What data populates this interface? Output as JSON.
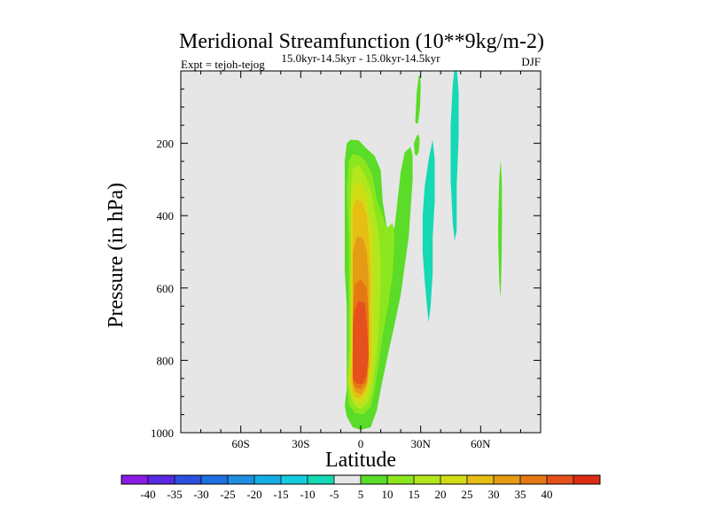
{
  "chart_data": {
    "type": "contour",
    "title": "Meridional Streamfunction (10**9kg/m-2)",
    "left_label": "Expt = tejoh-tejog",
    "center_label": "15.0kyr-14.5kyr - 15.0kyr-14.5kyr",
    "right_label": "DJF",
    "xlabel": "Latitude",
    "ylabel": "Pressure (in hPa)",
    "xlim": [
      -90,
      90
    ],
    "ylim": [
      1000,
      0
    ],
    "x_ticks": [
      {
        "value": -60,
        "label": "60S"
      },
      {
        "value": -30,
        "label": "30S"
      },
      {
        "value": 0,
        "label": "0"
      },
      {
        "value": 30,
        "label": "30N"
      },
      {
        "value": 60,
        "label": "60N"
      }
    ],
    "y_ticks": [
      {
        "value": 200,
        "label": "200"
      },
      {
        "value": 400,
        "label": "400"
      },
      {
        "value": 600,
        "label": "600"
      },
      {
        "value": 800,
        "label": "800"
      },
      {
        "value": 1000,
        "label": "1000"
      }
    ],
    "background_color": "#e6e6e6",
    "colorbar": {
      "colors": [
        "#8a1ae6",
        "#5a28e0",
        "#2c4fe0",
        "#1e6fe0",
        "#1e8fe0",
        "#14aee6",
        "#14cde0",
        "#14d9b4",
        "#e6e6e6",
        "#5adc28",
        "#8ce61e",
        "#b4e61e",
        "#d2dc14",
        "#e6be14",
        "#e69b14",
        "#e67814",
        "#e6501e",
        "#dc2d14"
      ],
      "labels": [
        "-40",
        "-35",
        "-30",
        "-25",
        "-20",
        "-15",
        "-10",
        "-5",
        "5",
        "10",
        "15",
        "20",
        "25",
        "30",
        "35",
        "40"
      ]
    },
    "contours": [
      {
        "level": 5,
        "color": "#5adc28",
        "points": [
          [
            -8,
            925
          ],
          [
            -7,
            880
          ],
          [
            -7,
            820
          ],
          [
            -7,
            750
          ],
          [
            -7,
            650
          ],
          [
            -8,
            550
          ],
          [
            -8,
            450
          ],
          [
            -8,
            350
          ],
          [
            -8,
            250
          ],
          [
            -7,
            200
          ],
          [
            -5,
            190
          ],
          [
            -1,
            192
          ],
          [
            3,
            215
          ],
          [
            7,
            235
          ],
          [
            10,
            275
          ],
          [
            11,
            360
          ],
          [
            13,
            430
          ],
          [
            15,
            455
          ],
          [
            17,
            430
          ],
          [
            18,
            380
          ],
          [
            20,
            280
          ],
          [
            22,
            225
          ],
          [
            25,
            210
          ],
          [
            26,
            235
          ],
          [
            26,
            300
          ],
          [
            25,
            380
          ],
          [
            24,
            460
          ],
          [
            22,
            540
          ],
          [
            20,
            620
          ],
          [
            17,
            700
          ],
          [
            13,
            800
          ],
          [
            10,
            880
          ],
          [
            8,
            940
          ],
          [
            5,
            985
          ],
          [
            0,
            992
          ],
          [
            -4,
            985
          ],
          [
            -7,
            955
          ]
        ]
      },
      {
        "level": 5,
        "color": "#5adc28",
        "points": [
          [
            26.6,
            200
          ],
          [
            27.3,
            190
          ],
          [
            28,
            180
          ],
          [
            28.7,
            175
          ],
          [
            29.4,
            185
          ],
          [
            29.4,
            200
          ],
          [
            29,
            225
          ],
          [
            28,
            235
          ],
          [
            27,
            230
          ]
        ]
      },
      {
        "level": 5,
        "color": "#5adc28",
        "points": [
          [
            27.3,
            140
          ],
          [
            28,
            60
          ],
          [
            29,
            15
          ],
          [
            29.7,
            10
          ],
          [
            30,
            40
          ],
          [
            29.7,
            100
          ],
          [
            28.7,
            145
          ],
          [
            27.7,
            145
          ]
        ]
      },
      {
        "level": 5,
        "color": "#5adc28",
        "points": [
          [
            68.8,
            400
          ],
          [
            69.3,
            300
          ],
          [
            70,
            245
          ],
          [
            70.6,
            300
          ],
          [
            70.7,
            400
          ],
          [
            70.5,
            520
          ],
          [
            70,
            628
          ],
          [
            69.3,
            580
          ],
          [
            68.8,
            480
          ]
        ]
      },
      {
        "level": -5,
        "color": "#14d9b4",
        "points": [
          [
            31,
            500
          ],
          [
            31,
            400
          ],
          [
            32,
            320
          ],
          [
            34,
            245
          ],
          [
            36,
            190
          ],
          [
            37,
            245
          ],
          [
            37,
            360
          ],
          [
            36,
            460
          ],
          [
            36,
            560
          ],
          [
            35,
            650
          ],
          [
            34,
            695
          ],
          [
            33,
            640
          ],
          [
            32,
            580
          ]
        ]
      },
      {
        "level": -5,
        "color": "#14d9b4",
        "points": [
          [
            45,
            300
          ],
          [
            45,
            150
          ],
          [
            46,
            40
          ],
          [
            47,
            -10
          ],
          [
            48,
            -10
          ],
          [
            49,
            60
          ],
          [
            49,
            180
          ],
          [
            48,
            320
          ],
          [
            48,
            440
          ],
          [
            47,
            470
          ],
          [
            46,
            420
          ]
        ]
      },
      {
        "level": 10,
        "color": "#8ce61e",
        "points": [
          [
            -7,
            860
          ],
          [
            -6,
            750
          ],
          [
            -6,
            600
          ],
          [
            -6,
            450
          ],
          [
            -7,
            330
          ],
          [
            -6,
            250
          ],
          [
            -4,
            230
          ],
          [
            0,
            235
          ],
          [
            3,
            255
          ],
          [
            6,
            290
          ],
          [
            8,
            355
          ],
          [
            11,
            400
          ],
          [
            13,
            435
          ],
          [
            16,
            420
          ],
          [
            17,
            460
          ],
          [
            16,
            560
          ],
          [
            14,
            640
          ],
          [
            11,
            730
          ],
          [
            9,
            810
          ],
          [
            7,
            880
          ],
          [
            5,
            930
          ],
          [
            1,
            950
          ],
          [
            -3,
            945
          ],
          [
            -6,
            920
          ]
        ]
      },
      {
        "level": 15,
        "color": "#b4e61e",
        "points": [
          [
            -6,
            860
          ],
          [
            -5,
            750
          ],
          [
            -5,
            600
          ],
          [
            -5,
            450
          ],
          [
            -5,
            330
          ],
          [
            -4,
            270
          ],
          [
            -1,
            260
          ],
          [
            2,
            285
          ],
          [
            5,
            330
          ],
          [
            7,
            390
          ],
          [
            9,
            450
          ],
          [
            10,
            520
          ],
          [
            10,
            600
          ],
          [
            9,
            700
          ],
          [
            8,
            790
          ],
          [
            6,
            870
          ],
          [
            4,
            915
          ],
          [
            0,
            935
          ],
          [
            -3,
            925
          ],
          [
            -5,
            900
          ]
        ]
      },
      {
        "level": 20,
        "color": "#d2dc14",
        "points": [
          [
            -6,
            860
          ],
          [
            -5,
            750
          ],
          [
            -5,
            600
          ],
          [
            -5,
            450
          ],
          [
            -5,
            360
          ],
          [
            -3,
            310
          ],
          [
            0,
            315
          ],
          [
            3,
            345
          ],
          [
            4,
            400
          ],
          [
            6,
            450
          ],
          [
            6,
            520
          ],
          [
            6,
            600
          ],
          [
            6,
            700
          ],
          [
            6,
            800
          ],
          [
            5,
            860
          ],
          [
            3,
            900
          ],
          [
            0,
            920
          ],
          [
            -3,
            915
          ],
          [
            -5,
            890
          ]
        ]
      },
      {
        "level": 25,
        "color": "#e6be14",
        "points": [
          [
            -5,
            860
          ],
          [
            -4,
            750
          ],
          [
            -4,
            600
          ],
          [
            -4,
            450
          ],
          [
            -4,
            380
          ],
          [
            -2,
            355
          ],
          [
            1,
            365
          ],
          [
            3,
            400
          ],
          [
            4,
            460
          ],
          [
            5,
            560
          ],
          [
            5,
            700
          ],
          [
            5,
            810
          ],
          [
            3,
            880
          ],
          [
            0,
            905
          ],
          [
            -3,
            900
          ],
          [
            -4,
            885
          ]
        ]
      },
      {
        "level": 30,
        "color": "#e69b14",
        "points": [
          [
            -4,
            860
          ],
          [
            -4,
            750
          ],
          [
            -4,
            620
          ],
          [
            -4,
            500
          ],
          [
            -2,
            460
          ],
          [
            1,
            460
          ],
          [
            3,
            500
          ],
          [
            4,
            580
          ],
          [
            4,
            700
          ],
          [
            4,
            810
          ],
          [
            3,
            870
          ],
          [
            0,
            895
          ],
          [
            -3,
            885
          ]
        ]
      },
      {
        "level": 35,
        "color": "#e67814",
        "points": [
          [
            -4,
            860
          ],
          [
            -4,
            780
          ],
          [
            -4,
            680
          ],
          [
            -3,
            590
          ],
          [
            0,
            575
          ],
          [
            3,
            600
          ],
          [
            4,
            680
          ],
          [
            4,
            800
          ],
          [
            3,
            860
          ],
          [
            0,
            880
          ],
          [
            -3,
            875
          ]
        ]
      },
      {
        "level": 40,
        "color": "#e6501e",
        "points": [
          [
            -4,
            850
          ],
          [
            -4,
            780
          ],
          [
            -4,
            720
          ],
          [
            -3,
            660
          ],
          [
            -1,
            635
          ],
          [
            2,
            640
          ],
          [
            3,
            700
          ],
          [
            4,
            780
          ],
          [
            3,
            840
          ],
          [
            1,
            865
          ],
          [
            -2,
            865
          ]
        ]
      }
    ]
  }
}
